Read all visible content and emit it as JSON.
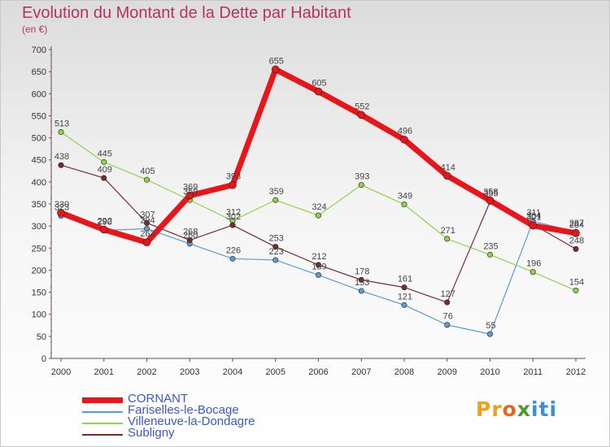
{
  "title": "Evolution du Montant de la Dette par Habitant",
  "subtitle": "(en €)",
  "brand": {
    "p": "Pr",
    "o": "o",
    "x": "x",
    "i": "iti"
  },
  "chart_data": {
    "type": "line",
    "title": "Evolution du Montant de la Dette par Habitant",
    "ylabel": "(en €)",
    "x": [
      "2000",
      "2001",
      "2002",
      "2003",
      "2004",
      "2005",
      "2006",
      "2007",
      "2008",
      "2009",
      "2010",
      "2011",
      "2012"
    ],
    "ylim": [
      0,
      700
    ],
    "yticks": [
      0,
      50,
      100,
      150,
      200,
      250,
      300,
      350,
      400,
      450,
      500,
      550,
      600,
      650,
      700
    ],
    "grid": false,
    "legend_position": "bottom-left",
    "series": [
      {
        "name": "CORNANT",
        "color": "#e8151a",
        "width": 7,
        "values": [
          330,
          292,
          263,
          369,
          393,
          655,
          605,
          552,
          496,
          414,
          358,
          301,
          284
        ],
        "labels": [
          "330",
          "292",
          "263",
          "369",
          "393",
          "655",
          "605",
          "552",
          "496",
          "414",
          "358",
          "301",
          "284"
        ]
      },
      {
        "name": "Fariselles-le-Bocage",
        "color": "#5a9bd5",
        "width": 1.2,
        "values": [
          323,
          290,
          294,
          260,
          226,
          223,
          189,
          153,
          121,
          76,
          55,
          311,
          287
        ],
        "labels": [
          "323",
          "290",
          "294",
          "260",
          "226",
          "223",
          "189",
          "153",
          "121",
          "76",
          "55",
          "311",
          "287"
        ]
      },
      {
        "name": "Villeneuve-la-Dondagre",
        "color": "#8ed448",
        "width": 1.2,
        "values": [
          513,
          445,
          405,
          359,
          312,
          359,
          324,
          393,
          349,
          271,
          235,
          196,
          154
        ],
        "labels": [
          "513",
          "445",
          "405",
          "359",
          "312",
          "359",
          "324",
          "393",
          "349",
          "271",
          "235",
          "196",
          "154"
        ]
      },
      {
        "name": "Subligny",
        "color": "#7a2b2b",
        "width": 1.2,
        "values": [
          438,
          409,
          307,
          268,
          302,
          253,
          212,
          178,
          161,
          127,
          355,
          304,
          248
        ],
        "labels": [
          "438",
          "409",
          "307",
          "268",
          "302",
          "253",
          "212",
          "178",
          "161",
          "127",
          "355",
          "304",
          "248"
        ]
      }
    ]
  }
}
